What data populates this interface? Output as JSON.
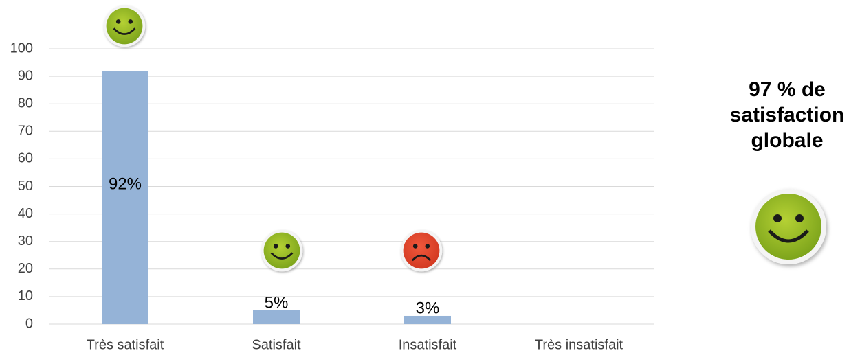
{
  "chart_data": {
    "type": "bar",
    "categories": [
      "Très satisfait",
      "Satisfait",
      "Insatisfait",
      "Très insatisfait"
    ],
    "values": [
      92,
      5,
      3,
      0
    ],
    "value_labels": [
      "92%",
      "5%",
      "3%",
      null
    ],
    "color": "#95b3d7",
    "ylim": [
      0,
      100
    ],
    "yticks": [
      0,
      10,
      20,
      30,
      40,
      50,
      60,
      70,
      80,
      90,
      100
    ],
    "grid": true,
    "annotation": "97 % de satisfaction globale"
  }
}
